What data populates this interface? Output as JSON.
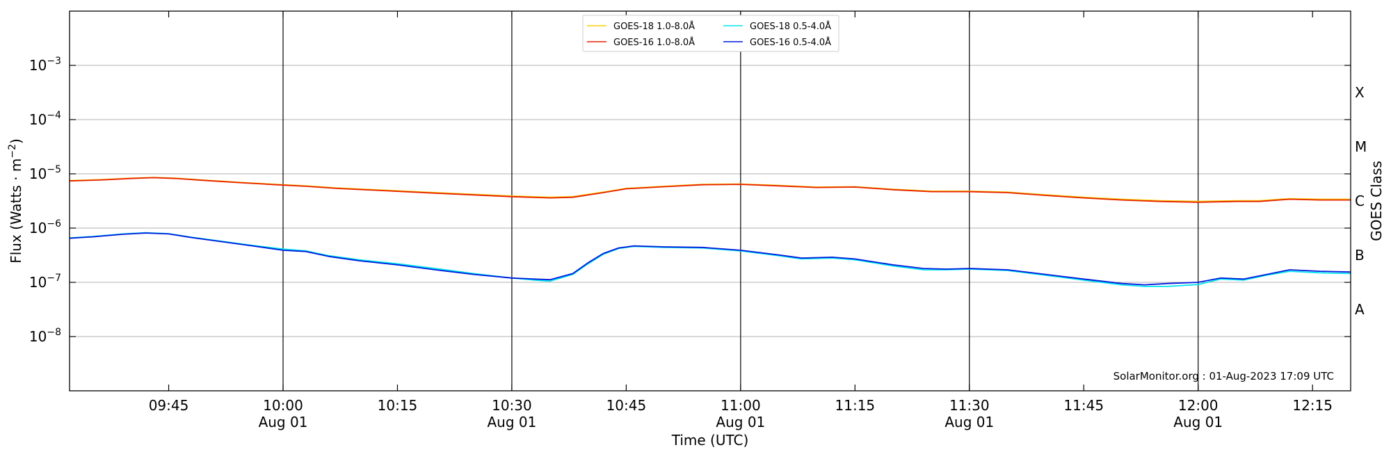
{
  "chart_data": {
    "type": "line",
    "title": "",
    "xlabel": "Time (UTC)",
    "ylabel_main": "Flux (Watts · m",
    "ylabel_sup": "−2",
    "ylabel_close": ")",
    "ylabel_right": "GOES Class",
    "y_scale": "log",
    "ylim": [
      1e-09,
      0.01
    ],
    "y_ticks": [
      {
        "value": 1e-08,
        "base": "10",
        "exp": "−8"
      },
      {
        "value": 1e-07,
        "base": "10",
        "exp": "−7"
      },
      {
        "value": 1e-06,
        "base": "10",
        "exp": "−6"
      },
      {
        "value": 1e-05,
        "base": "10",
        "exp": "−5"
      },
      {
        "value": 0.0001,
        "base": "10",
        "exp": "−4"
      },
      {
        "value": 0.001,
        "base": "10",
        "exp": "−3"
      }
    ],
    "x_range_minutes": [
      "09:32",
      "12:20"
    ],
    "x_ticks": [
      {
        "time": "09:45",
        "label": "09:45",
        "sub": ""
      },
      {
        "time": "10:00",
        "label": "10:00",
        "sub": "Aug 01"
      },
      {
        "time": "10:15",
        "label": "10:15",
        "sub": ""
      },
      {
        "time": "10:30",
        "label": "10:30",
        "sub": "Aug 01"
      },
      {
        "time": "10:45",
        "label": "10:45",
        "sub": ""
      },
      {
        "time": "11:00",
        "label": "11:00",
        "sub": "Aug 01"
      },
      {
        "time": "11:15",
        "label": "11:15",
        "sub": ""
      },
      {
        "time": "11:30",
        "label": "11:30",
        "sub": "Aug 01"
      },
      {
        "time": "11:45",
        "label": "11:45",
        "sub": ""
      },
      {
        "time": "12:00",
        "label": "12:00",
        "sub": "Aug 01"
      },
      {
        "time": "12:15",
        "label": "12:15",
        "sub": ""
      }
    ],
    "vertical_lines": [
      "10:00",
      "10:30",
      "11:00",
      "11:30",
      "12:00"
    ],
    "grid": "horizontal",
    "goes_classes": [
      {
        "label": "A",
        "value": 3.16e-08
      },
      {
        "label": "B",
        "value": 3.16e-07
      },
      {
        "label": "C",
        "value": 3.16e-06
      },
      {
        "label": "M",
        "value": 3.16e-05
      },
      {
        "label": "X",
        "value": 0.000316
      }
    ],
    "legend_position": "top-center",
    "legend": [
      {
        "name": "GOES-18 1.0-8.0Å",
        "color": "#f5d000"
      },
      {
        "name": "GOES-18 0.5-4.0Å",
        "color": "#00e5ee"
      },
      {
        "name": "GOES-16 1.0-8.0Å",
        "color": "#e82000"
      },
      {
        "name": "GOES-16 0.5-4.0Å",
        "color": "#0018dd"
      }
    ],
    "series": [
      {
        "name": "GOES-18 1.0-8.0Å",
        "color": "#f5d000",
        "x": [
          "09:32",
          "09:36",
          "09:40",
          "09:43",
          "09:46",
          "09:50",
          "09:55",
          "10:00",
          "10:03",
          "10:07",
          "10:12",
          "10:20",
          "10:30",
          "10:35",
          "10:38",
          "10:42",
          "10:45",
          "10:50",
          "10:55",
          "11:00",
          "11:05",
          "11:10",
          "11:15",
          "11:20",
          "11:25",
          "11:30",
          "11:35",
          "11:40",
          "11:45",
          "11:50",
          "11:55",
          "12:00",
          "12:05",
          "12:08",
          "12:12",
          "12:16",
          "12:20"
        ],
        "values": [
          7.5e-06,
          7.8e-06,
          8.3e-06,
          8.6e-06,
          8.3e-06,
          7.6e-06,
          6.9e-06,
          6.3e-06,
          6e-06,
          5.5e-06,
          5.1e-06,
          4.5e-06,
          3.9e-06,
          3.7e-06,
          3.8e-06,
          4.6e-06,
          5.4e-06,
          5.9e-06,
          6.4e-06,
          6.5e-06,
          6.1e-06,
          5.7e-06,
          5.8e-06,
          5.2e-06,
          4.8e-06,
          4.8e-06,
          4.6e-06,
          4.1e-06,
          3.7e-06,
          3.4e-06,
          3.2e-06,
          3.1e-06,
          3.2e-06,
          3.2e-06,
          3.5e-06,
          3.4e-06,
          3.4e-06
        ]
      },
      {
        "name": "GOES-16 1.0-8.0Å",
        "color": "#e82000",
        "x": [
          "09:32",
          "09:36",
          "09:40",
          "09:43",
          "09:46",
          "09:50",
          "09:55",
          "10:00",
          "10:03",
          "10:07",
          "10:12",
          "10:20",
          "10:30",
          "10:35",
          "10:38",
          "10:42",
          "10:45",
          "10:50",
          "10:55",
          "11:00",
          "11:05",
          "11:10",
          "11:15",
          "11:20",
          "11:25",
          "11:30",
          "11:35",
          "11:40",
          "11:45",
          "11:50",
          "11:55",
          "12:00",
          "12:05",
          "12:08",
          "12:12",
          "12:16",
          "12:20"
        ],
        "values": [
          7.4e-06,
          7.7e-06,
          8.2e-06,
          8.5e-06,
          8.2e-06,
          7.5e-06,
          6.8e-06,
          6.2e-06,
          5.9e-06,
          5.4e-06,
          5e-06,
          4.4e-06,
          3.8e-06,
          3.6e-06,
          3.7e-06,
          4.5e-06,
          5.3e-06,
          5.8e-06,
          6.3e-06,
          6.4e-06,
          6e-06,
          5.6e-06,
          5.7e-06,
          5.1e-06,
          4.7e-06,
          4.7e-06,
          4.5e-06,
          4e-06,
          3.6e-06,
          3.3e-06,
          3.1e-06,
          3e-06,
          3.1e-06,
          3.1e-06,
          3.4e-06,
          3.3e-06,
          3.3e-06
        ]
      },
      {
        "name": "GOES-18 0.5-4.0Å",
        "color": "#00e5ee",
        "x": [
          "09:32",
          "09:35",
          "09:39",
          "09:42",
          "09:45",
          "09:48",
          "09:52",
          "09:56",
          "10:00",
          "10:03",
          "10:06",
          "10:10",
          "10:15",
          "10:20",
          "10:25",
          "10:30",
          "10:33",
          "10:35",
          "10:38",
          "10:40",
          "10:42",
          "10:44",
          "10:46",
          "10:50",
          "10:55",
          "11:00",
          "11:05",
          "11:08",
          "11:12",
          "11:15",
          "11:20",
          "11:24",
          "11:27",
          "11:30",
          "11:35",
          "11:40",
          "11:45",
          "11:50",
          "11:53",
          "11:56",
          "12:00",
          "12:03",
          "12:06",
          "12:09",
          "12:12",
          "12:16",
          "12:20"
        ],
        "values": [
          6.6e-07,
          7e-07,
          7.8e-07,
          8.2e-07,
          7.9e-07,
          6.8e-07,
          5.7e-07,
          4.8e-07,
          4.1e-07,
          3.8e-07,
          3.1e-07,
          2.6e-07,
          2.2e-07,
          1.8e-07,
          1.45e-07,
          1.2e-07,
          1.1e-07,
          1.05e-07,
          1.4e-07,
          2.2e-07,
          3.3e-07,
          4.2e-07,
          4.6e-07,
          4.4e-07,
          4.3e-07,
          3.8e-07,
          3.1e-07,
          2.7e-07,
          2.8e-07,
          2.6e-07,
          2e-07,
          1.7e-07,
          1.7e-07,
          1.75e-07,
          1.65e-07,
          1.35e-07,
          1.1e-07,
          9e-08,
          8.4e-08,
          8.4e-08,
          9.1e-08,
          1.15e-07,
          1.1e-07,
          1.35e-07,
          1.6e-07,
          1.5e-07,
          1.45e-07
        ]
      },
      {
        "name": "GOES-16 0.5-4.0Å",
        "color": "#0018dd",
        "x": [
          "09:32",
          "09:35",
          "09:39",
          "09:42",
          "09:45",
          "09:48",
          "09:52",
          "09:56",
          "10:00",
          "10:03",
          "10:06",
          "10:10",
          "10:15",
          "10:20",
          "10:25",
          "10:30",
          "10:33",
          "10:35",
          "10:38",
          "10:40",
          "10:42",
          "10:44",
          "10:46",
          "10:50",
          "10:55",
          "11:00",
          "11:05",
          "11:08",
          "11:12",
          "11:15",
          "11:20",
          "11:24",
          "11:27",
          "11:30",
          "11:35",
          "11:40",
          "11:45",
          "11:50",
          "11:53",
          "11:56",
          "12:00",
          "12:03",
          "12:06",
          "12:09",
          "12:12",
          "12:16",
          "12:20"
        ],
        "values": [
          6.5e-07,
          6.9e-07,
          7.7e-07,
          8.1e-07,
          7.8e-07,
          6.7e-07,
          5.6e-07,
          4.7e-07,
          3.9e-07,
          3.7e-07,
          3e-07,
          2.5e-07,
          2.1e-07,
          1.7e-07,
          1.4e-07,
          1.2e-07,
          1.15e-07,
          1.12e-07,
          1.45e-07,
          2.3e-07,
          3.4e-07,
          4.3e-07,
          4.7e-07,
          4.5e-07,
          4.4e-07,
          3.9e-07,
          3.2e-07,
          2.8e-07,
          2.9e-07,
          2.7e-07,
          2.1e-07,
          1.8e-07,
          1.75e-07,
          1.8e-07,
          1.7e-07,
          1.4e-07,
          1.15e-07,
          9.5e-08,
          9e-08,
          9.5e-08,
          1e-07,
          1.2e-07,
          1.15e-07,
          1.4e-07,
          1.7e-07,
          1.6e-07,
          1.55e-07
        ]
      }
    ],
    "credit": "SolarMonitor.org : 01-Aug-2023 17:09 UTC"
  }
}
